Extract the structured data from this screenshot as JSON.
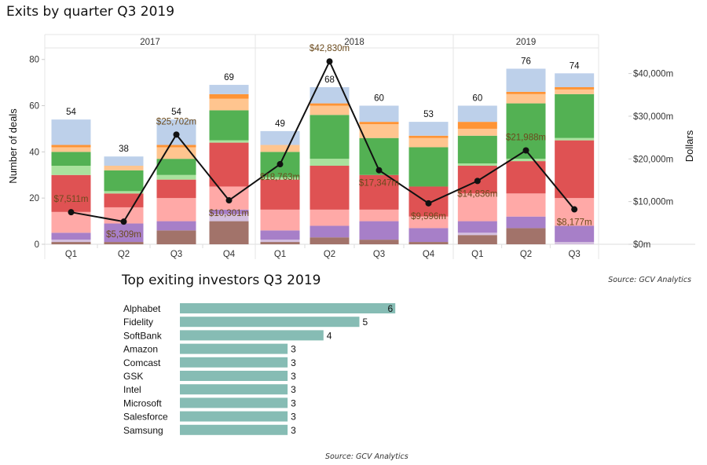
{
  "chart_data": [
    {
      "type": "bar",
      "stacked": true,
      "dual_axis": true,
      "title": "Exits by quarter Q3 2019",
      "ylabel": "Number of deals",
      "y2label": "Dollars",
      "ylim": [
        0,
        85
      ],
      "yticks": [
        0,
        20,
        40,
        60,
        80
      ],
      "y2lim": [
        0,
        46000
      ],
      "y2ticks": [
        "$0m",
        "$10,000m",
        "$20,000m",
        "$30,000m",
        "$40,000m"
      ],
      "y2tick_values": [
        0,
        10000,
        20000,
        30000,
        40000
      ],
      "years": [
        {
          "label": "2017",
          "quarters": [
            "Q1",
            "Q2",
            "Q3",
            "Q4"
          ]
        },
        {
          "label": "2018",
          "quarters": [
            "Q1",
            "Q2",
            "Q3",
            "Q4"
          ]
        },
        {
          "label": "2019",
          "quarters": [
            "Q1",
            "Q2",
            "Q3"
          ]
        }
      ],
      "segment_colors": [
        "#a2736a",
        "#d4bfdf",
        "#a77fc8",
        "#ffa9a7",
        "#df5253",
        "#a9e29d",
        "#53b153",
        "#ffc58f",
        "#ff9435",
        "#bdd0ea"
      ],
      "segments": [
        [
          1,
          1,
          3,
          9,
          16,
          4,
          6,
          2,
          1,
          11
        ],
        [
          1,
          0,
          8,
          7,
          6,
          1,
          9,
          2,
          0,
          4
        ],
        [
          6,
          0,
          4,
          10,
          8,
          2,
          7,
          5,
          1,
          11
        ],
        [
          10,
          3,
          2,
          10,
          19,
          1,
          13,
          5,
          2,
          4
        ],
        [
          1,
          1,
          4,
          9,
          13,
          1,
          11,
          3,
          0,
          6
        ],
        [
          3,
          0,
          5,
          7,
          19,
          3,
          19,
          4,
          1,
          7
        ],
        [
          2,
          0,
          8,
          5,
          15,
          0,
          16,
          6,
          1,
          7
        ],
        [
          1,
          0,
          6,
          5,
          13,
          0,
          17,
          4,
          1,
          6
        ],
        [
          4,
          1,
          5,
          12,
          12,
          1,
          12,
          3,
          3,
          7
        ],
        [
          7,
          0,
          5,
          10,
          14,
          1,
          24,
          4,
          1,
          10
        ],
        [
          0,
          1,
          7,
          12,
          25,
          1,
          19,
          2,
          1,
          6
        ]
      ],
      "totals": [
        "54",
        "38",
        "54",
        "69",
        "49",
        "68",
        "60",
        "53",
        "60",
        "76",
        "74"
      ],
      "dollars": [
        7511,
        5309,
        25702,
        10301,
        18763,
        42830,
        17347,
        9596,
        14836,
        21988,
        8177
      ],
      "dollar_labels": [
        "$7,511m",
        "$5,309m",
        "$25,702m",
        "$10,301m",
        "$18,763m",
        "$42,830m",
        "$17,347m",
        "$9,596m",
        "$14,836m",
        "$21,988m",
        "$8,177m"
      ],
      "line_color": "#111111",
      "dollar_label_color": "#6b4a1c"
    },
    {
      "type": "bar",
      "orientation": "horizontal",
      "title": "Top exiting investors Q3 2019",
      "source": "Source: GCV Analytics",
      "categories": [
        "Alphabet",
        "Fidelity",
        "SoftBank",
        "Amazon",
        "Comcast",
        "GSK",
        "Intel",
        "Microsoft",
        "Salesforce",
        "Samsung"
      ],
      "values": [
        6,
        5,
        4,
        3,
        3,
        3,
        3,
        3,
        3,
        3
      ],
      "color": "#86bcb4"
    }
  ],
  "top_source": "Source: GCV Analytics"
}
